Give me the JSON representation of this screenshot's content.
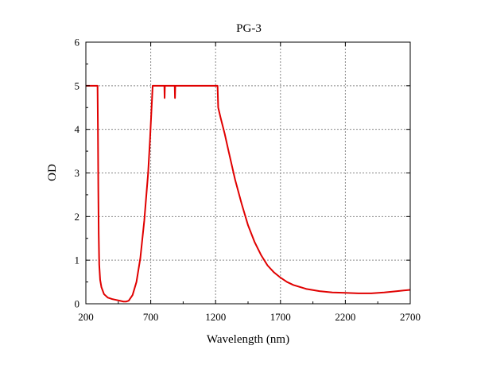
{
  "chart_data": {
    "type": "line",
    "title": "PG-3",
    "xlabel": "Wavelength (nm)",
    "ylabel": "OD",
    "xlim": [
      200,
      2700
    ],
    "ylim": [
      0,
      6
    ],
    "xticks": [
      "200",
      "700",
      "1200",
      "1700",
      "2200",
      "2700"
    ],
    "yticks": [
      "0",
      "1",
      "2",
      "3",
      "4",
      "5",
      "6"
    ],
    "grid": true,
    "legend": "none",
    "series": [
      {
        "color": "#e00000",
        "points": [
          [
            200,
            5.0
          ],
          [
            290,
            5.0
          ],
          [
            293,
            4.0
          ],
          [
            296,
            2.6
          ],
          [
            299,
            1.6
          ],
          [
            303,
            0.9
          ],
          [
            310,
            0.55
          ],
          [
            320,
            0.38
          ],
          [
            340,
            0.22
          ],
          [
            370,
            0.14
          ],
          [
            400,
            0.11
          ],
          [
            430,
            0.09
          ],
          [
            460,
            0.07
          ],
          [
            490,
            0.05
          ],
          [
            510,
            0.05
          ],
          [
            530,
            0.07
          ],
          [
            560,
            0.2
          ],
          [
            590,
            0.5
          ],
          [
            620,
            1.05
          ],
          [
            650,
            1.9
          ],
          [
            680,
            3.0
          ],
          [
            695,
            3.8
          ],
          [
            705,
            4.4
          ],
          [
            715,
            5.0
          ],
          [
            805,
            5.0
          ],
          [
            807,
            4.72
          ],
          [
            809,
            5.0
          ],
          [
            885,
            5.0
          ],
          [
            887,
            4.72
          ],
          [
            889,
            5.0
          ],
          [
            1215,
            5.0
          ],
          [
            1220,
            4.5
          ],
          [
            1240,
            4.25
          ],
          [
            1270,
            3.9
          ],
          [
            1300,
            3.5
          ],
          [
            1350,
            2.85
          ],
          [
            1400,
            2.3
          ],
          [
            1450,
            1.8
          ],
          [
            1500,
            1.42
          ],
          [
            1550,
            1.12
          ],
          [
            1600,
            0.88
          ],
          [
            1650,
            0.72
          ],
          [
            1700,
            0.6
          ],
          [
            1750,
            0.5
          ],
          [
            1800,
            0.43
          ],
          [
            1900,
            0.34
          ],
          [
            2000,
            0.29
          ],
          [
            2100,
            0.26
          ],
          [
            2200,
            0.25
          ],
          [
            2300,
            0.24
          ],
          [
            2400,
            0.24
          ],
          [
            2500,
            0.26
          ],
          [
            2600,
            0.29
          ],
          [
            2700,
            0.32
          ]
        ]
      }
    ]
  }
}
